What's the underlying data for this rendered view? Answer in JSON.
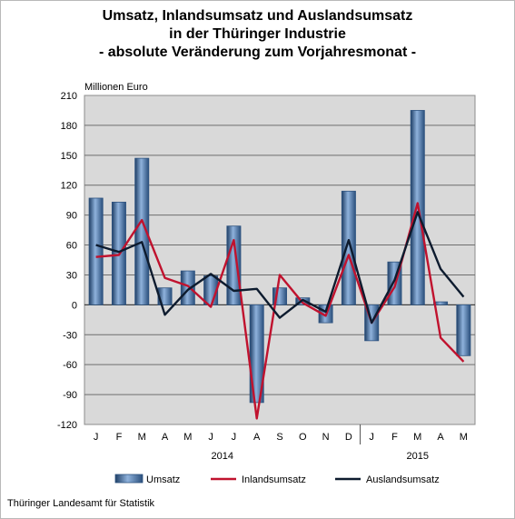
{
  "chart_data": {
    "type": "bar+line",
    "title_lines": [
      "Umsatz, Inlandsumsatz und Auslandsumsatz",
      "in der Thüringer Industrie",
      "- absolute Veränderung zum Vorjahresmonat -"
    ],
    "ylabel": "Millionen Euro",
    "ylim": [
      -120,
      210
    ],
    "yticks": [
      -120,
      -90,
      -60,
      -30,
      0,
      30,
      60,
      90,
      120,
      150,
      180,
      210
    ],
    "categories": [
      "J",
      "F",
      "M",
      "A",
      "M",
      "J",
      "J",
      "A",
      "S",
      "O",
      "N",
      "D",
      "J",
      "F",
      "M",
      "A",
      "M"
    ],
    "years": [
      {
        "label": "2014",
        "from": 0,
        "to": 11
      },
      {
        "label": "2015",
        "from": 12,
        "to": 16
      }
    ],
    "grid": true,
    "legend_position": "bottom",
    "series": [
      {
        "name": "Umsatz",
        "kind": "bar",
        "color": "#4f81bd",
        "values": [
          107,
          103,
          147,
          17,
          34,
          29,
          79,
          -98,
          17,
          7,
          -18,
          114,
          -36,
          43,
          195,
          3,
          -51
        ]
      },
      {
        "name": "Inlandsumsatz",
        "kind": "line",
        "color": "#c0122e",
        "values": [
          48,
          50,
          85,
          27,
          19,
          -2,
          65,
          -114,
          30,
          2,
          -11,
          50,
          -18,
          18,
          102,
          -33,
          -57
        ]
      },
      {
        "name": "Auslandsumsatz",
        "kind": "line",
        "color": "#0d1b2e",
        "values": [
          60,
          53,
          63,
          -10,
          15,
          31,
          14,
          16,
          -13,
          5,
          -7,
          65,
          -18,
          25,
          93,
          36,
          8
        ]
      }
    ]
  },
  "source": "Thüringer Landesamt für Statistik"
}
